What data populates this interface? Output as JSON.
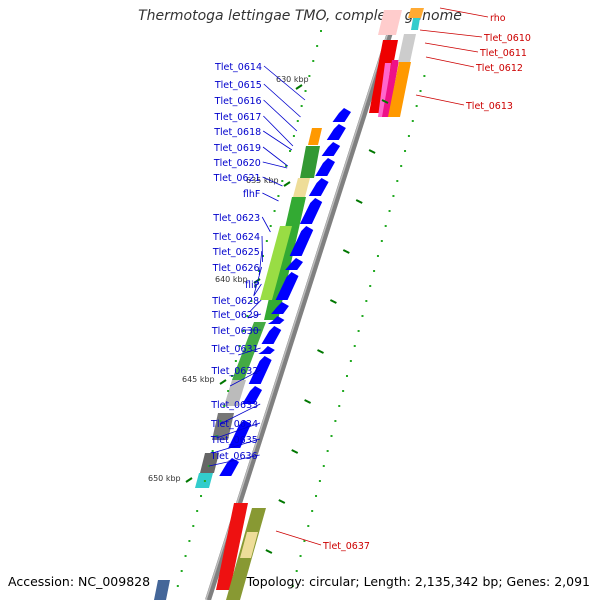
{
  "title": "Thermotoga lettingae TMO, complete genome",
  "footer": {
    "accession": "Accession: NC_009828",
    "stats": "Topology: circular; Length: 2,135,342 bp; Genes: 2,091"
  },
  "colors": {
    "label_blue": "#0000cc",
    "label_red": "#cc0000",
    "backbone": "#808080",
    "gene_blue": "#0000ff",
    "gene_red": "#ff0000",
    "tick_green": "#007700"
  },
  "ruler": [
    {
      "label": "630 kbp"
    },
    {
      "label": "635 kbp"
    },
    {
      "label": "640 kbp"
    },
    {
      "label": "645 kbp"
    },
    {
      "label": "650 kbp"
    }
  ],
  "left_genes": [
    "Tlet_0614",
    "Tlet_0615",
    "Tlet_0616",
    "Tlet_0617",
    "Tlet_0618",
    "Tlet_0619",
    "Tlet_0620",
    "Tlet_0621",
    "flhF",
    "Tlet_0623",
    "Tlet_0624",
    "Tlet_0625",
    "Tlet_0626",
    "fliP",
    "Tlet_0628",
    "Tlet_0629",
    "Tlet_0630",
    "Tlet_0631",
    "Tlet_0632",
    "Tlet_0633",
    "Tlet_0634",
    "Tlet_0635",
    "Tlet_0636"
  ],
  "right_genes": [
    "rho",
    "Tlet_0610",
    "Tlet_0611",
    "Tlet_0612",
    "Tlet_0613",
    "Tlet_0637"
  ]
}
